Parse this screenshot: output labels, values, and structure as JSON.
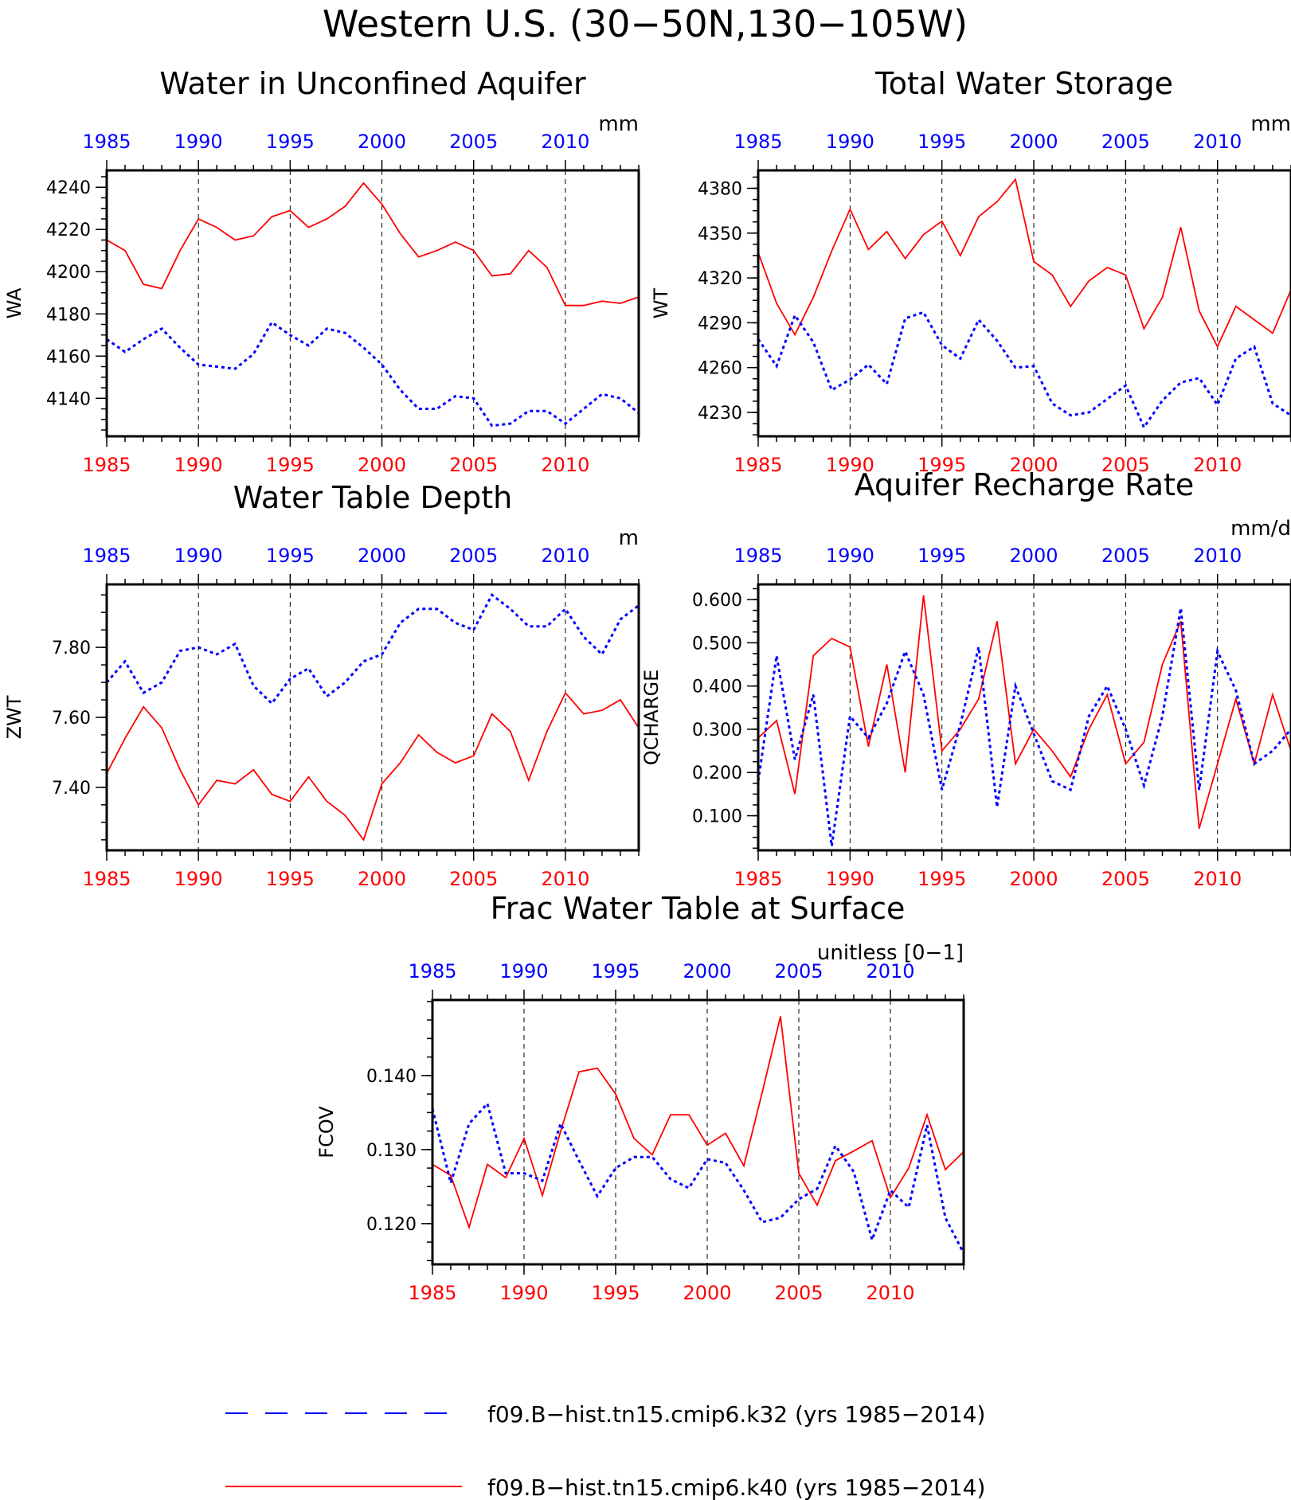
{
  "figure": {
    "title": "Western U.S. (30−50N,130−105W)"
  },
  "colors": {
    "k32": "#0000ff",
    "k40": "#ff0000",
    "axis": "#000000",
    "grid": "#000000"
  },
  "legend": {
    "placement": "bottom",
    "entries": [
      {
        "series": "k32",
        "label": "f09.B−hist.tn15.cmip6.k32 (yrs 1985−2014)",
        "style": "dashed"
      },
      {
        "series": "k40",
        "label": "f09.B−hist.tn15.cmip6.k40 (yrs 1985−2014)",
        "style": "solid"
      }
    ]
  },
  "chart_data": [
    {
      "id": "wa",
      "type": "line",
      "title": "Water in Unconfined Aquifer",
      "ylabel": "WA",
      "units": "mm",
      "xlim": [
        1985,
        2014
      ],
      "ylim": [
        4122,
        4248
      ],
      "yticks": [
        4140,
        4160,
        4180,
        4200,
        4220,
        4240
      ],
      "yticklabels": [
        "4140",
        "4160",
        "4180",
        "4200",
        "4220",
        "4240"
      ],
      "xticks": [
        1985,
        1990,
        1995,
        2000,
        2005,
        2010
      ],
      "xticklabels": [
        "1985",
        "1990",
        "1995",
        "2000",
        "2005",
        "2010"
      ],
      "grid_x": [
        1990,
        1995,
        2000,
        2005,
        2010
      ],
      "x": [
        1985,
        1986,
        1987,
        1988,
        1989,
        1990,
        1991,
        1992,
        1993,
        1994,
        1995,
        1996,
        1997,
        1998,
        1999,
        2000,
        2001,
        2002,
        2003,
        2004,
        2005,
        2006,
        2007,
        2008,
        2009,
        2010,
        2011,
        2012,
        2013,
        2014
      ],
      "series": [
        {
          "key": "k40",
          "values": [
            4215,
            4210,
            4194,
            4192,
            4210,
            4225,
            4221,
            4215,
            4217,
            4226,
            4229,
            4221,
            4225,
            4231,
            4242,
            4232,
            4218,
            4207,
            4210,
            4214,
            4210,
            4198,
            4199,
            4210,
            4202,
            4184,
            4184,
            4186,
            4185,
            4188
          ]
        },
        {
          "key": "k32",
          "values": [
            4168,
            4162,
            4168,
            4173,
            4164,
            4156,
            4155,
            4154,
            4161,
            4176,
            4170,
            4165,
            4173,
            4171,
            4164,
            4156,
            4144,
            4135,
            4135,
            4141,
            4140,
            4127,
            4128,
            4134,
            4134,
            4128,
            4135,
            4142,
            4140,
            4133
          ]
        }
      ]
    },
    {
      "id": "wt",
      "type": "line",
      "title": "Total Water Storage",
      "ylabel": "WT",
      "units": "mm",
      "xlim": [
        1985,
        2014
      ],
      "ylim": [
        4214,
        4392
      ],
      "yticks": [
        4230,
        4260,
        4290,
        4320,
        4350,
        4380
      ],
      "yticklabels": [
        "4230",
        "4260",
        "4290",
        "4320",
        "4350",
        "4380"
      ],
      "xticks": [
        1985,
        1990,
        1995,
        2000,
        2005,
        2010
      ],
      "xticklabels": [
        "1985",
        "1990",
        "1995",
        "2000",
        "2005",
        "2010"
      ],
      "grid_x": [
        1990,
        1995,
        2000,
        2005,
        2010
      ],
      "x": [
        1985,
        1986,
        1987,
        1988,
        1989,
        1990,
        1991,
        1992,
        1993,
        1994,
        1995,
        1996,
        1997,
        1998,
        1999,
        2000,
        2001,
        2002,
        2003,
        2004,
        2005,
        2006,
        2007,
        2008,
        2009,
        2010,
        2011,
        2012,
        2013,
        2014
      ],
      "series": [
        {
          "key": "k40",
          "values": [
            4337,
            4303,
            4282,
            4307,
            4338,
            4366,
            4339,
            4351,
            4333,
            4349,
            4358,
            4335,
            4361,
            4371,
            4386,
            4331,
            4322,
            4301,
            4318,
            4327,
            4322,
            4286,
            4307,
            4354,
            4298,
            4274,
            4301,
            4292,
            4283,
            4312
          ]
        },
        {
          "key": "k32",
          "values": [
            4279,
            4261,
            4295,
            4277,
            4245,
            4252,
            4262,
            4249,
            4293,
            4297,
            4275,
            4266,
            4292,
            4278,
            4260,
            4261,
            4236,
            4228,
            4230,
            4239,
            4248,
            4220,
            4238,
            4250,
            4253,
            4235,
            4266,
            4274,
            4236,
            4228
          ]
        }
      ]
    },
    {
      "id": "zwt",
      "type": "line",
      "title": "Water Table Depth",
      "ylabel": "ZWT",
      "units": "m",
      "xlim": [
        1985,
        2014
      ],
      "ylim": [
        7.22,
        7.98
      ],
      "yticks": [
        7.4,
        7.6,
        7.8
      ],
      "yticklabels": [
        "7.40",
        "7.60",
        "7.80"
      ],
      "xticks": [
        1985,
        1990,
        1995,
        2000,
        2005,
        2010
      ],
      "xticklabels": [
        "1985",
        "1990",
        "1995",
        "2000",
        "2005",
        "2010"
      ],
      "grid_x": [
        1990,
        1995,
        2000,
        2005,
        2010
      ],
      "x": [
        1985,
        1986,
        1987,
        1988,
        1989,
        1990,
        1991,
        1992,
        1993,
        1994,
        1995,
        1996,
        1997,
        1998,
        1999,
        2000,
        2001,
        2002,
        2003,
        2004,
        2005,
        2006,
        2007,
        2008,
        2009,
        2010,
        2011,
        2012,
        2013,
        2014
      ],
      "series": [
        {
          "key": "k40",
          "values": [
            7.44,
            7.54,
            7.63,
            7.57,
            7.45,
            7.35,
            7.42,
            7.41,
            7.45,
            7.38,
            7.36,
            7.43,
            7.36,
            7.32,
            7.25,
            7.41,
            7.47,
            7.55,
            7.5,
            7.47,
            7.49,
            7.61,
            7.56,
            7.42,
            7.56,
            7.67,
            7.61,
            7.62,
            7.65,
            7.57
          ]
        },
        {
          "key": "k32",
          "values": [
            7.7,
            7.76,
            7.67,
            7.7,
            7.79,
            7.8,
            7.78,
            7.81,
            7.69,
            7.64,
            7.71,
            7.74,
            7.66,
            7.7,
            7.76,
            7.78,
            7.87,
            7.91,
            7.91,
            7.87,
            7.85,
            7.95,
            7.91,
            7.86,
            7.86,
            7.91,
            7.83,
            7.78,
            7.88,
            7.92
          ]
        }
      ]
    },
    {
      "id": "qcharge",
      "type": "line",
      "title": "Aquifer Recharge Rate",
      "ylabel": "QCHARGE",
      "units": "mm/d",
      "xlim": [
        1985,
        2014
      ],
      "ylim": [
        0.02,
        0.635
      ],
      "yticks": [
        0.1,
        0.2,
        0.3,
        0.4,
        0.5,
        0.6
      ],
      "yticklabels": [
        "0.100",
        "0.200",
        "0.300",
        "0.400",
        "0.500",
        "0.600"
      ],
      "xticks": [
        1985,
        1990,
        1995,
        2000,
        2005,
        2010
      ],
      "xticklabels": [
        "1985",
        "1990",
        "1995",
        "2000",
        "2005",
        "2010"
      ],
      "grid_x": [
        1990,
        1995,
        2000,
        2005,
        2010
      ],
      "x": [
        1985,
        1986,
        1987,
        1988,
        1989,
        1990,
        1991,
        1992,
        1993,
        1994,
        1995,
        1996,
        1997,
        1998,
        1999,
        2000,
        2001,
        2002,
        2003,
        2004,
        2005,
        2006,
        2007,
        2008,
        2009,
        2010,
        2011,
        2012,
        2013,
        2014
      ],
      "series": [
        {
          "key": "k40",
          "values": [
            0.28,
            0.32,
            0.15,
            0.47,
            0.51,
            0.49,
            0.26,
            0.45,
            0.2,
            0.61,
            0.25,
            0.3,
            0.37,
            0.55,
            0.22,
            0.3,
            0.25,
            0.19,
            0.3,
            0.38,
            0.22,
            0.27,
            0.45,
            0.55,
            0.07,
            0.22,
            0.37,
            0.22,
            0.38,
            0.25
          ]
        },
        {
          "key": "k32",
          "values": [
            0.18,
            0.47,
            0.23,
            0.38,
            0.03,
            0.33,
            0.28,
            0.36,
            0.48,
            0.38,
            0.16,
            0.31,
            0.49,
            0.12,
            0.4,
            0.29,
            0.18,
            0.16,
            0.33,
            0.4,
            0.3,
            0.17,
            0.33,
            0.58,
            0.16,
            0.48,
            0.39,
            0.22,
            0.25,
            0.3
          ]
        }
      ]
    },
    {
      "id": "fcov",
      "type": "line",
      "title": "Frac Water Table at Surface",
      "ylabel": "FCOV",
      "units": "unitless [0−1]",
      "xlim": [
        1985,
        2014
      ],
      "ylim": [
        0.1145,
        0.1502
      ],
      "yticks": [
        0.12,
        0.13,
        0.14
      ],
      "yticklabels": [
        "0.120",
        "0.130",
        "0.140"
      ],
      "xticks": [
        1985,
        1990,
        1995,
        2000,
        2005,
        2010
      ],
      "xticklabels": [
        "1985",
        "1990",
        "1995",
        "2000",
        "2005",
        "2010"
      ],
      "grid_x": [
        1990,
        1995,
        2000,
        2005,
        2010
      ],
      "x": [
        1985,
        1986,
        1987,
        1988,
        1989,
        1990,
        1991,
        1992,
        1993,
        1994,
        1995,
        1996,
        1997,
        1998,
        1999,
        2000,
        2001,
        2002,
        2003,
        2004,
        2005,
        2006,
        2007,
        2008,
        2009,
        2010,
        2011,
        2012,
        2013,
        2014
      ],
      "series": [
        {
          "key": "k40",
          "values": [
            0.128,
            0.1265,
            0.1195,
            0.128,
            0.1262,
            0.1315,
            0.1238,
            0.1325,
            0.1405,
            0.141,
            0.1375,
            0.1315,
            0.1293,
            0.1347,
            0.1347,
            0.1306,
            0.1322,
            0.1278,
            0.1377,
            0.148,
            0.1268,
            0.1225,
            0.1285,
            0.1298,
            0.1312,
            0.1235,
            0.1275,
            0.1347,
            0.1273,
            0.1297
          ]
        },
        {
          "key": "k32",
          "values": [
            0.1355,
            0.1255,
            0.1335,
            0.1362,
            0.1268,
            0.1268,
            0.1258,
            0.1335,
            0.1285,
            0.1237,
            0.1275,
            0.129,
            0.129,
            0.126,
            0.1248,
            0.1287,
            0.1282,
            0.1245,
            0.1202,
            0.1208,
            0.1233,
            0.1247,
            0.1305,
            0.127,
            0.1178,
            0.1245,
            0.1222,
            0.1333,
            0.1208,
            0.116
          ]
        }
      ]
    }
  ]
}
